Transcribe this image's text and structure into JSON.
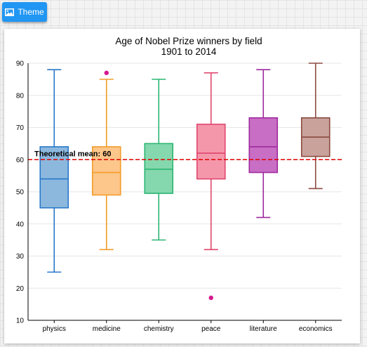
{
  "toolbar": {
    "theme_label": "Theme",
    "theme_icon": "image-icon"
  },
  "chart_data": {
    "type": "boxplot",
    "title": "Age of Nobel Prize winners by field",
    "subtitle": "1901 to 2014",
    "xlabel": "",
    "ylabel": "",
    "ylim": [
      10,
      90
    ],
    "yticks": [
      10,
      20,
      30,
      40,
      50,
      60,
      70,
      80,
      90
    ],
    "grid": true,
    "categories": [
      "physics",
      "medicine",
      "chemistry",
      "peace",
      "literature",
      "economics"
    ],
    "series": [
      {
        "category": "physics",
        "low": 25,
        "q1": 45,
        "median": 54,
        "q3": 64,
        "high": 88,
        "outliers": [],
        "color": "#2878c8",
        "fill": "#8cb8de"
      },
      {
        "category": "medicine",
        "low": 32,
        "q1": 49,
        "median": 56,
        "q3": 64,
        "high": 85,
        "outliers": [
          87
        ],
        "color": "#f39c2a",
        "fill": "#fdc68a"
      },
      {
        "category": "chemistry",
        "low": 35,
        "q1": 49.5,
        "median": 57,
        "q3": 65,
        "high": 85,
        "outliers": [],
        "color": "#2bb673",
        "fill": "#85d8ad"
      },
      {
        "category": "peace",
        "low": 32,
        "q1": 54,
        "median": 62,
        "q3": 71,
        "high": 87,
        "outliers": [
          17
        ],
        "color": "#e0456d",
        "fill": "#f597ab"
      },
      {
        "category": "literature",
        "low": 42,
        "q1": 56,
        "median": 64,
        "q3": 73,
        "high": 88,
        "outliers": [],
        "color": "#9e2a9e",
        "fill": "#c86ec4"
      },
      {
        "category": "economics",
        "low": 51,
        "q1": 61,
        "median": 67,
        "q3": 73,
        "high": 90,
        "outliers": [],
        "color": "#8b4a3e",
        "fill": "#c9a29c"
      }
    ],
    "outlier_color": "#d6178f",
    "plot_line": {
      "value": 60,
      "label": "Theoretical mean: 60",
      "color": "#e00000",
      "style": "dashed"
    }
  }
}
